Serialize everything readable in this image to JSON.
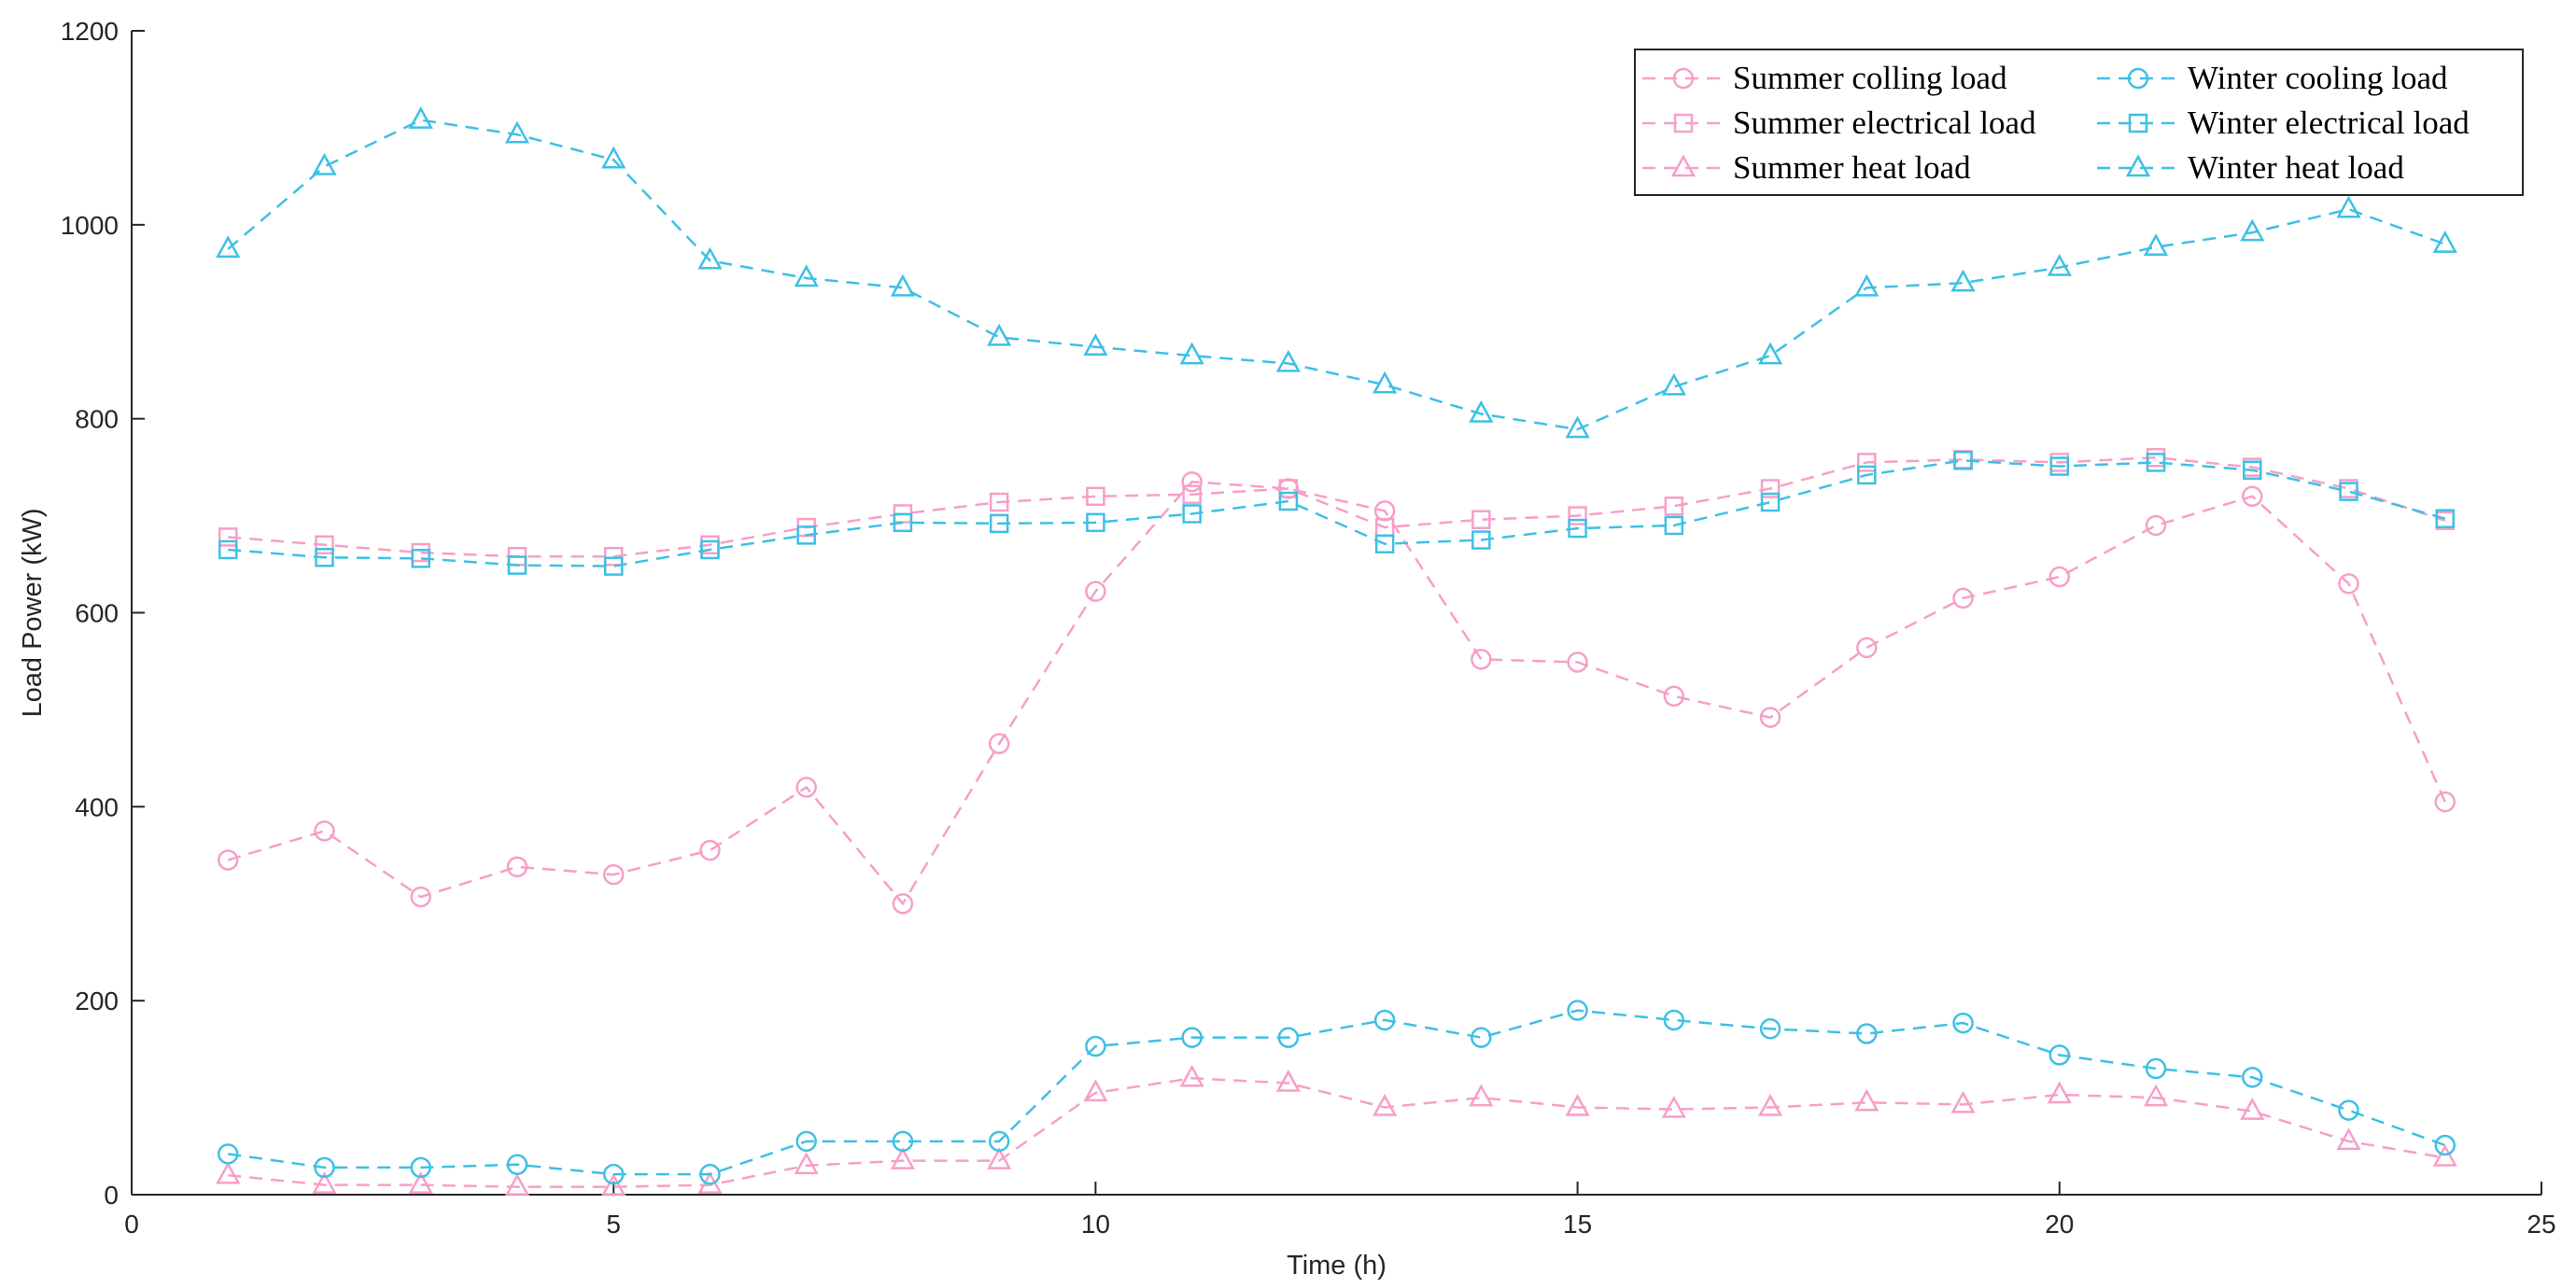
{
  "chart_data": {
    "type": "line",
    "title": "",
    "xlabel": "Time (h)",
    "ylabel": "Load Power (kW)",
    "xlim": [
      0,
      25
    ],
    "ylim": [
      0,
      1200
    ],
    "xticks": [
      0,
      5,
      10,
      15,
      20,
      25
    ],
    "yticks": [
      0,
      200,
      400,
      600,
      800,
      1000,
      1200
    ],
    "grid": false,
    "legend_position": "top-right",
    "x": [
      1,
      2,
      3,
      4,
      5,
      6,
      7,
      8,
      9,
      10,
      11,
      12,
      13,
      14,
      15,
      16,
      17,
      18,
      19,
      20,
      21,
      22,
      23,
      24
    ],
    "series": [
      {
        "name": "Summer colling load",
        "color": "#f79fc8",
        "marker": "circle",
        "values": [
          345,
          375,
          307,
          338,
          330,
          355,
          420,
          300,
          465,
          622,
          735,
          728,
          705,
          552,
          549,
          514,
          492,
          564,
          615,
          637,
          690,
          720,
          630,
          405
        ]
      },
      {
        "name": "Summer electrical load",
        "color": "#f79fc8",
        "marker": "square",
        "values": [
          678,
          670,
          662,
          658,
          658,
          670,
          688,
          702,
          714,
          720,
          722,
          728,
          688,
          696,
          700,
          710,
          728,
          755,
          758,
          755,
          760,
          750,
          728,
          695
        ]
      },
      {
        "name": "Summer heat load",
        "color": "#f79fc8",
        "marker": "triangle",
        "values": [
          20,
          10,
          10,
          8,
          8,
          10,
          30,
          35,
          35,
          105,
          120,
          115,
          90,
          100,
          90,
          88,
          90,
          95,
          93,
          103,
          100,
          86,
          55,
          38
        ]
      },
      {
        "name": "Winter cooling load",
        "color": "#3ec0e4",
        "marker": "circle",
        "values": [
          42,
          28,
          28,
          31,
          21,
          21,
          55,
          55,
          55,
          153,
          162,
          162,
          180,
          162,
          190,
          180,
          171,
          166,
          177,
          144,
          130,
          121,
          87,
          51
        ]
      },
      {
        "name": "Winter electrical load",
        "color": "#3ec0e4",
        "marker": "square",
        "values": [
          665,
          657,
          656,
          649,
          648,
          665,
          680,
          693,
          692,
          693,
          702,
          715,
          671,
          675,
          687,
          690,
          714,
          742,
          757,
          751,
          755,
          747,
          725,
          697
        ]
      },
      {
        "name": "Winter heat load",
        "color": "#3ec0e4",
        "marker": "triangle",
        "values": [
          975,
          1060,
          1108,
          1093,
          1067,
          963,
          945,
          935,
          884,
          874,
          865,
          857,
          835,
          805,
          789,
          833,
          865,
          935,
          940,
          956,
          977,
          992,
          1016,
          980
        ]
      }
    ]
  }
}
